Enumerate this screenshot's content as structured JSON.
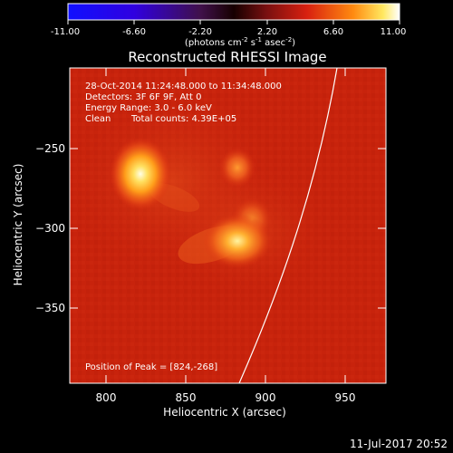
{
  "colorbar": {
    "ticks": [
      "-11.00",
      "-6.60",
      "-2.20",
      "2.20",
      "6.60",
      "11.00"
    ],
    "units": {
      "lead": "(photons cm",
      "exp1": "-2",
      "mid1": " s",
      "exp2": "-1",
      "mid2": " asec",
      "exp3": "-2",
      "tail": ")"
    }
  },
  "plot": {
    "title": "Reconstructed RHESSI Image",
    "time_range": "28-Oct-2014 11:24:48.000 to 11:34:48.000",
    "detectors": "Detectors: 3F 6F 9F, Att 0",
    "energy": "Energy Range: 3.0 - 6.0 keV",
    "method": "Clean",
    "total_counts": "Total counts: 4.39E+05",
    "peak": "Position of Peak = [824,-268]",
    "xlabel": "Heliocentric X (arcsec)",
    "ylabel": "Heliocentric Y (arcsec)",
    "xticks": [
      "800",
      "850",
      "900",
      "950"
    ],
    "yticks": [
      "−250",
      "−300",
      "−350"
    ]
  },
  "footer": {
    "timestamp": "11-Jul-2017 20:52"
  }
}
